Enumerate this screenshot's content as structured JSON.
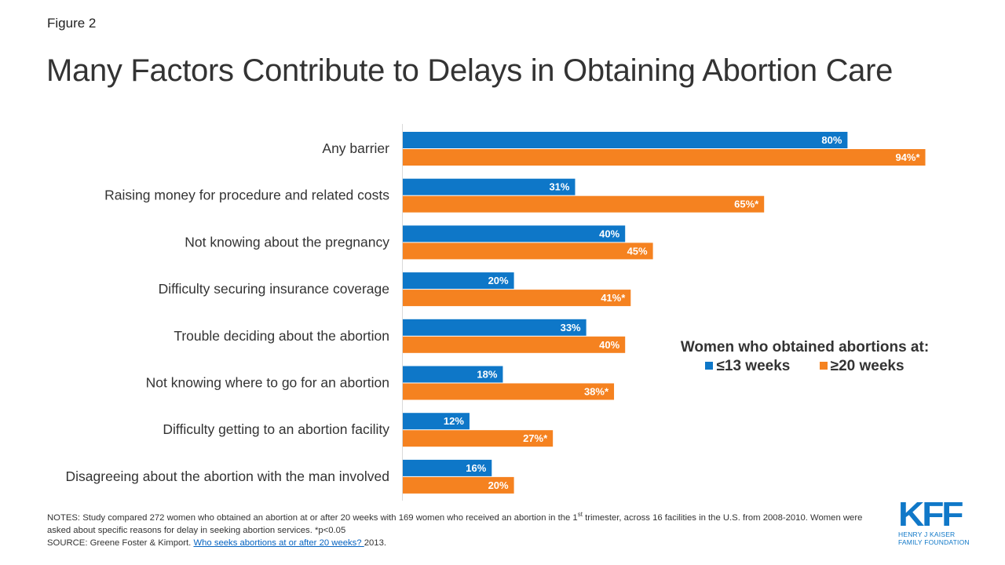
{
  "figure_label": "Figure 2",
  "title": "Many Factors Contribute to Delays in Obtaining Abortion Care",
  "chart_data": {
    "type": "bar",
    "orientation": "horizontal",
    "title": "Many Factors Contribute to Delays in Obtaining Abortion Care",
    "xlabel": "",
    "ylabel": "",
    "xlim": [
      0,
      100
    ],
    "grid": false,
    "legend_title": "Women who obtained abortions at:",
    "legend_position": "right",
    "categories": [
      "Any barrier",
      "Raising money for procedure and related costs",
      "Not knowing about the pregnancy",
      "Difficulty securing insurance coverage",
      "Trouble deciding about the abortion",
      "Not knowing where to go for an abortion",
      "Difficulty getting to an abortion facility",
      "Disagreeing about the abortion with the man involved"
    ],
    "series": [
      {
        "name": "≤13 weeks",
        "color": "#0e77c8",
        "values": [
          80,
          31,
          40,
          20,
          33,
          18,
          12,
          16
        ],
        "labels": [
          "80%",
          "31%",
          "40%",
          "20%",
          "33%",
          "18%",
          "12%",
          "16%"
        ]
      },
      {
        "name": "≥20 weeks",
        "color": "#f58220",
        "values": [
          94,
          65,
          45,
          41,
          40,
          38,
          27,
          20
        ],
        "labels": [
          "94%*",
          "65%*",
          "45%",
          "41%*",
          "40%",
          "38%*",
          "27%*",
          "20%"
        ]
      }
    ]
  },
  "notes": {
    "line1_pre": "NOTES: Study compared 272 women who obtained an abortion at or after 20 weeks with 169 women who received  an abortion in the 1",
    "line1_sup": "st",
    "line1_post": " trimester, across 16 facilities in the U.S. from 2008-2010.  Women were asked about specific reasons for delay in seeking abortion services.  *p<0.05",
    "source_pre": "SOURCE: Greene Foster & Kimport. ",
    "source_link": "Who seeks abortions  at or after 20 weeks? ",
    "source_post": "2013."
  },
  "logo": {
    "mark": "KFF",
    "line1": "HENRY J KAISER",
    "line2": "FAMILY FOUNDATION",
    "color": "#1078c8"
  }
}
